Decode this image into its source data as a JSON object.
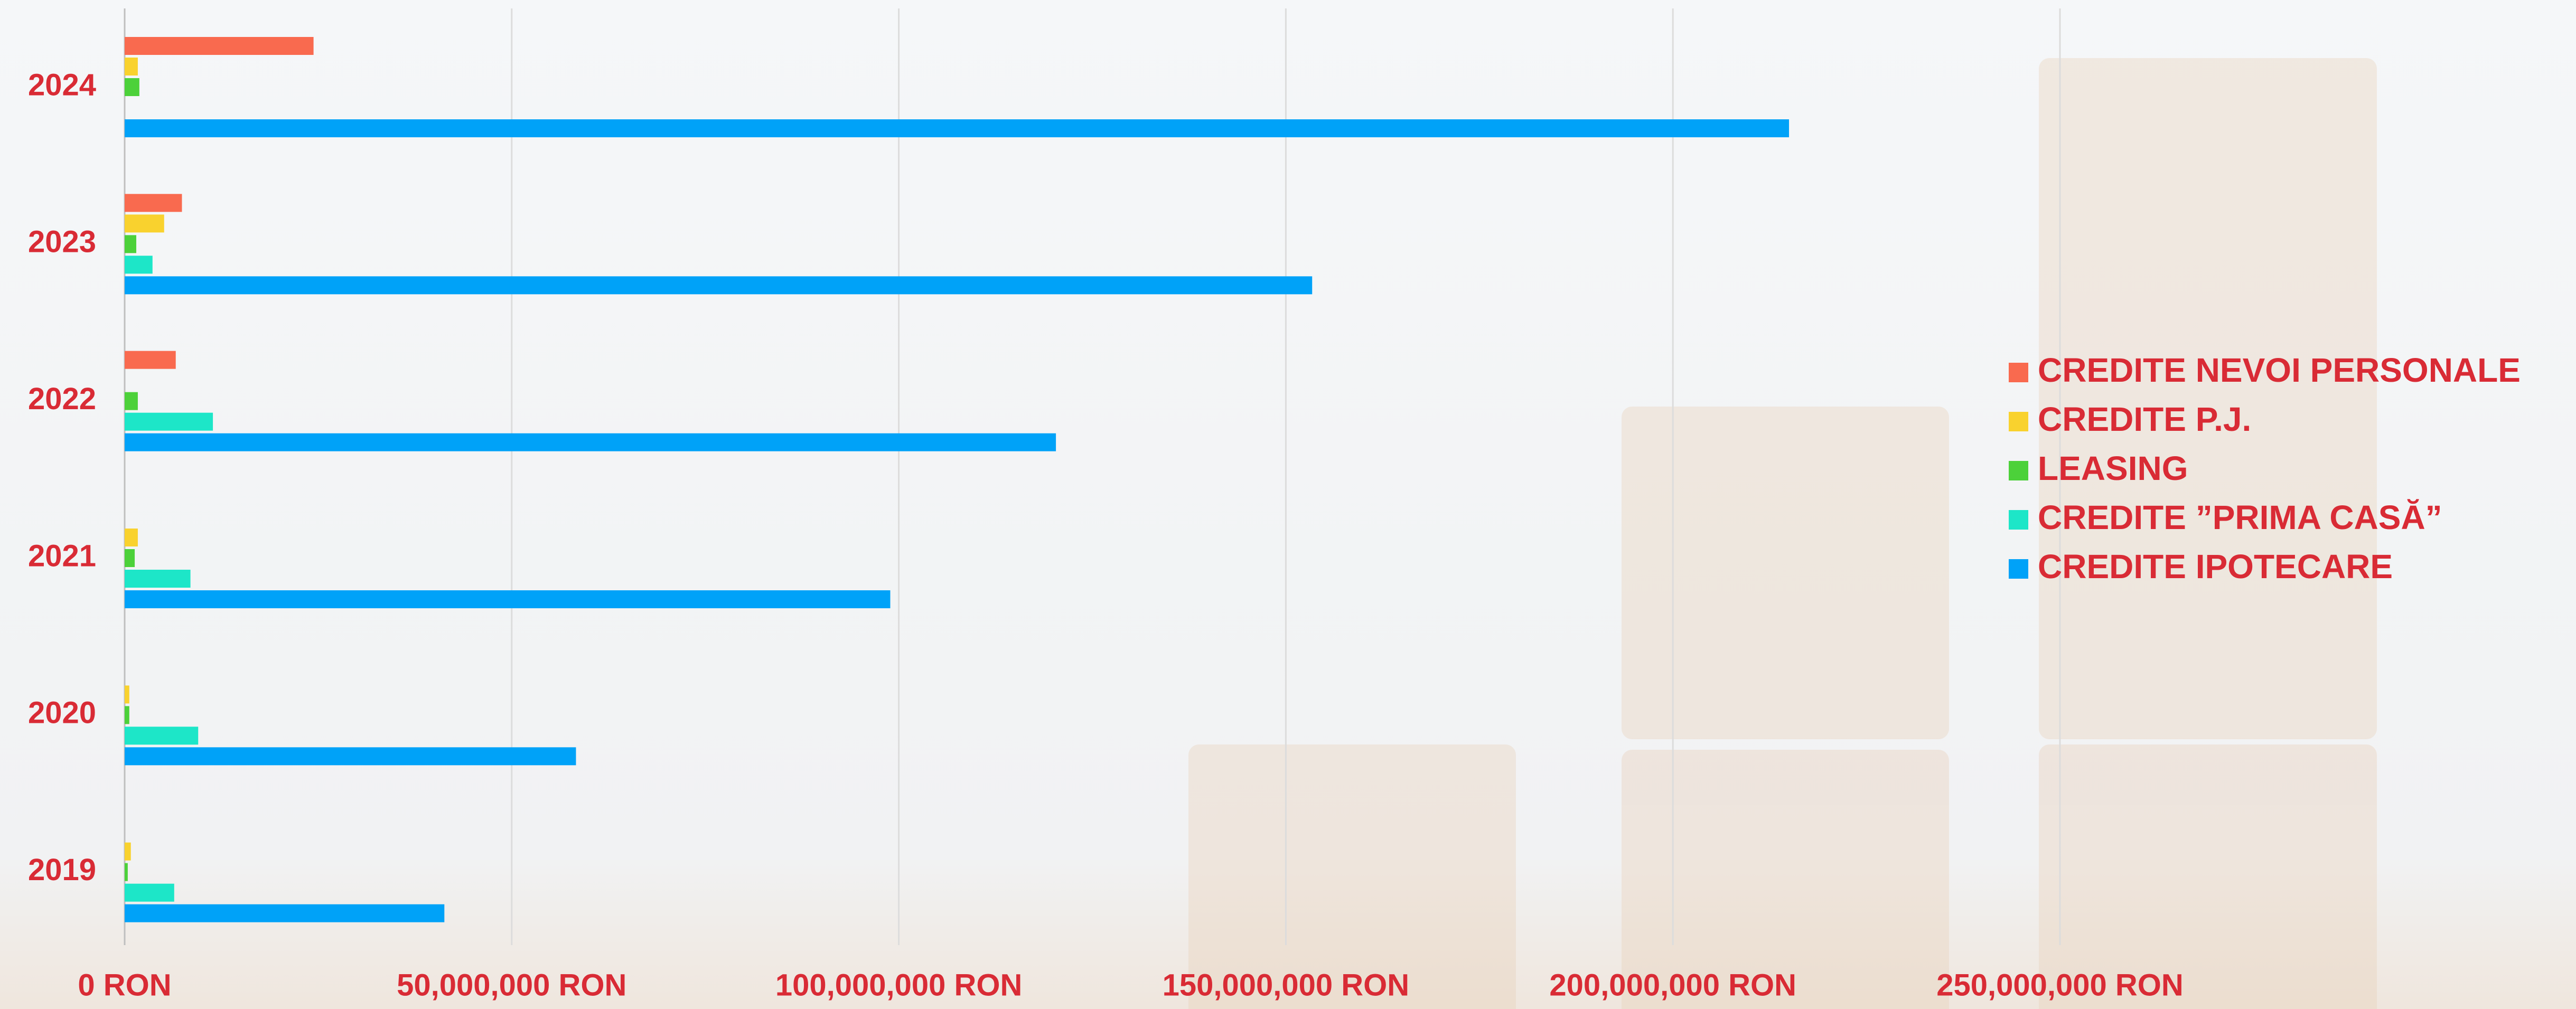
{
  "chart_data": {
    "type": "bar",
    "orientation": "horizontal",
    "categories": [
      "2024",
      "2023",
      "2022",
      "2021",
      "2020",
      "2019"
    ],
    "series": [
      {
        "name": "CREDITE NEVOI PERSONALE",
        "color": "#f96a4f",
        "values": [
          24400000,
          7400000,
          6600000,
          null,
          null,
          null
        ]
      },
      {
        "name": "CREDITE P.J.",
        "color": "#f9d22e",
        "values": [
          1700000,
          5100000,
          null,
          1700000,
          600000,
          800000
        ]
      },
      {
        "name": "LEASING",
        "color": "#4cd13a",
        "values": [
          1900000,
          1500000,
          1700000,
          1300000,
          600000,
          400000
        ]
      },
      {
        "name": "CREDITE ”PRIMA CASĂ”",
        "color": "#1de6c8",
        "values": [
          null,
          3600000,
          11400000,
          8500000,
          9500000,
          6400000
        ]
      },
      {
        "name": "CREDITE IPOTECARE",
        "color": "#00a2f8",
        "values": [
          215000000,
          153400000,
          120300000,
          98900000,
          58300000,
          41300000
        ]
      }
    ],
    "xlim": [
      0,
      250000000
    ],
    "xticks": [
      {
        "value": 0,
        "label": "0 RON"
      },
      {
        "value": 50000000,
        "label": "50,000,000 RON"
      },
      {
        "value": 100000000,
        "label": "100,000,000 RON"
      },
      {
        "value": 150000000,
        "label": "150,000,000 RON"
      },
      {
        "value": 200000000,
        "label": "200,000,000 RON"
      },
      {
        "value": 250000000,
        "label": "250,000,000 RON"
      }
    ],
    "grid": true,
    "legend": "right"
  }
}
